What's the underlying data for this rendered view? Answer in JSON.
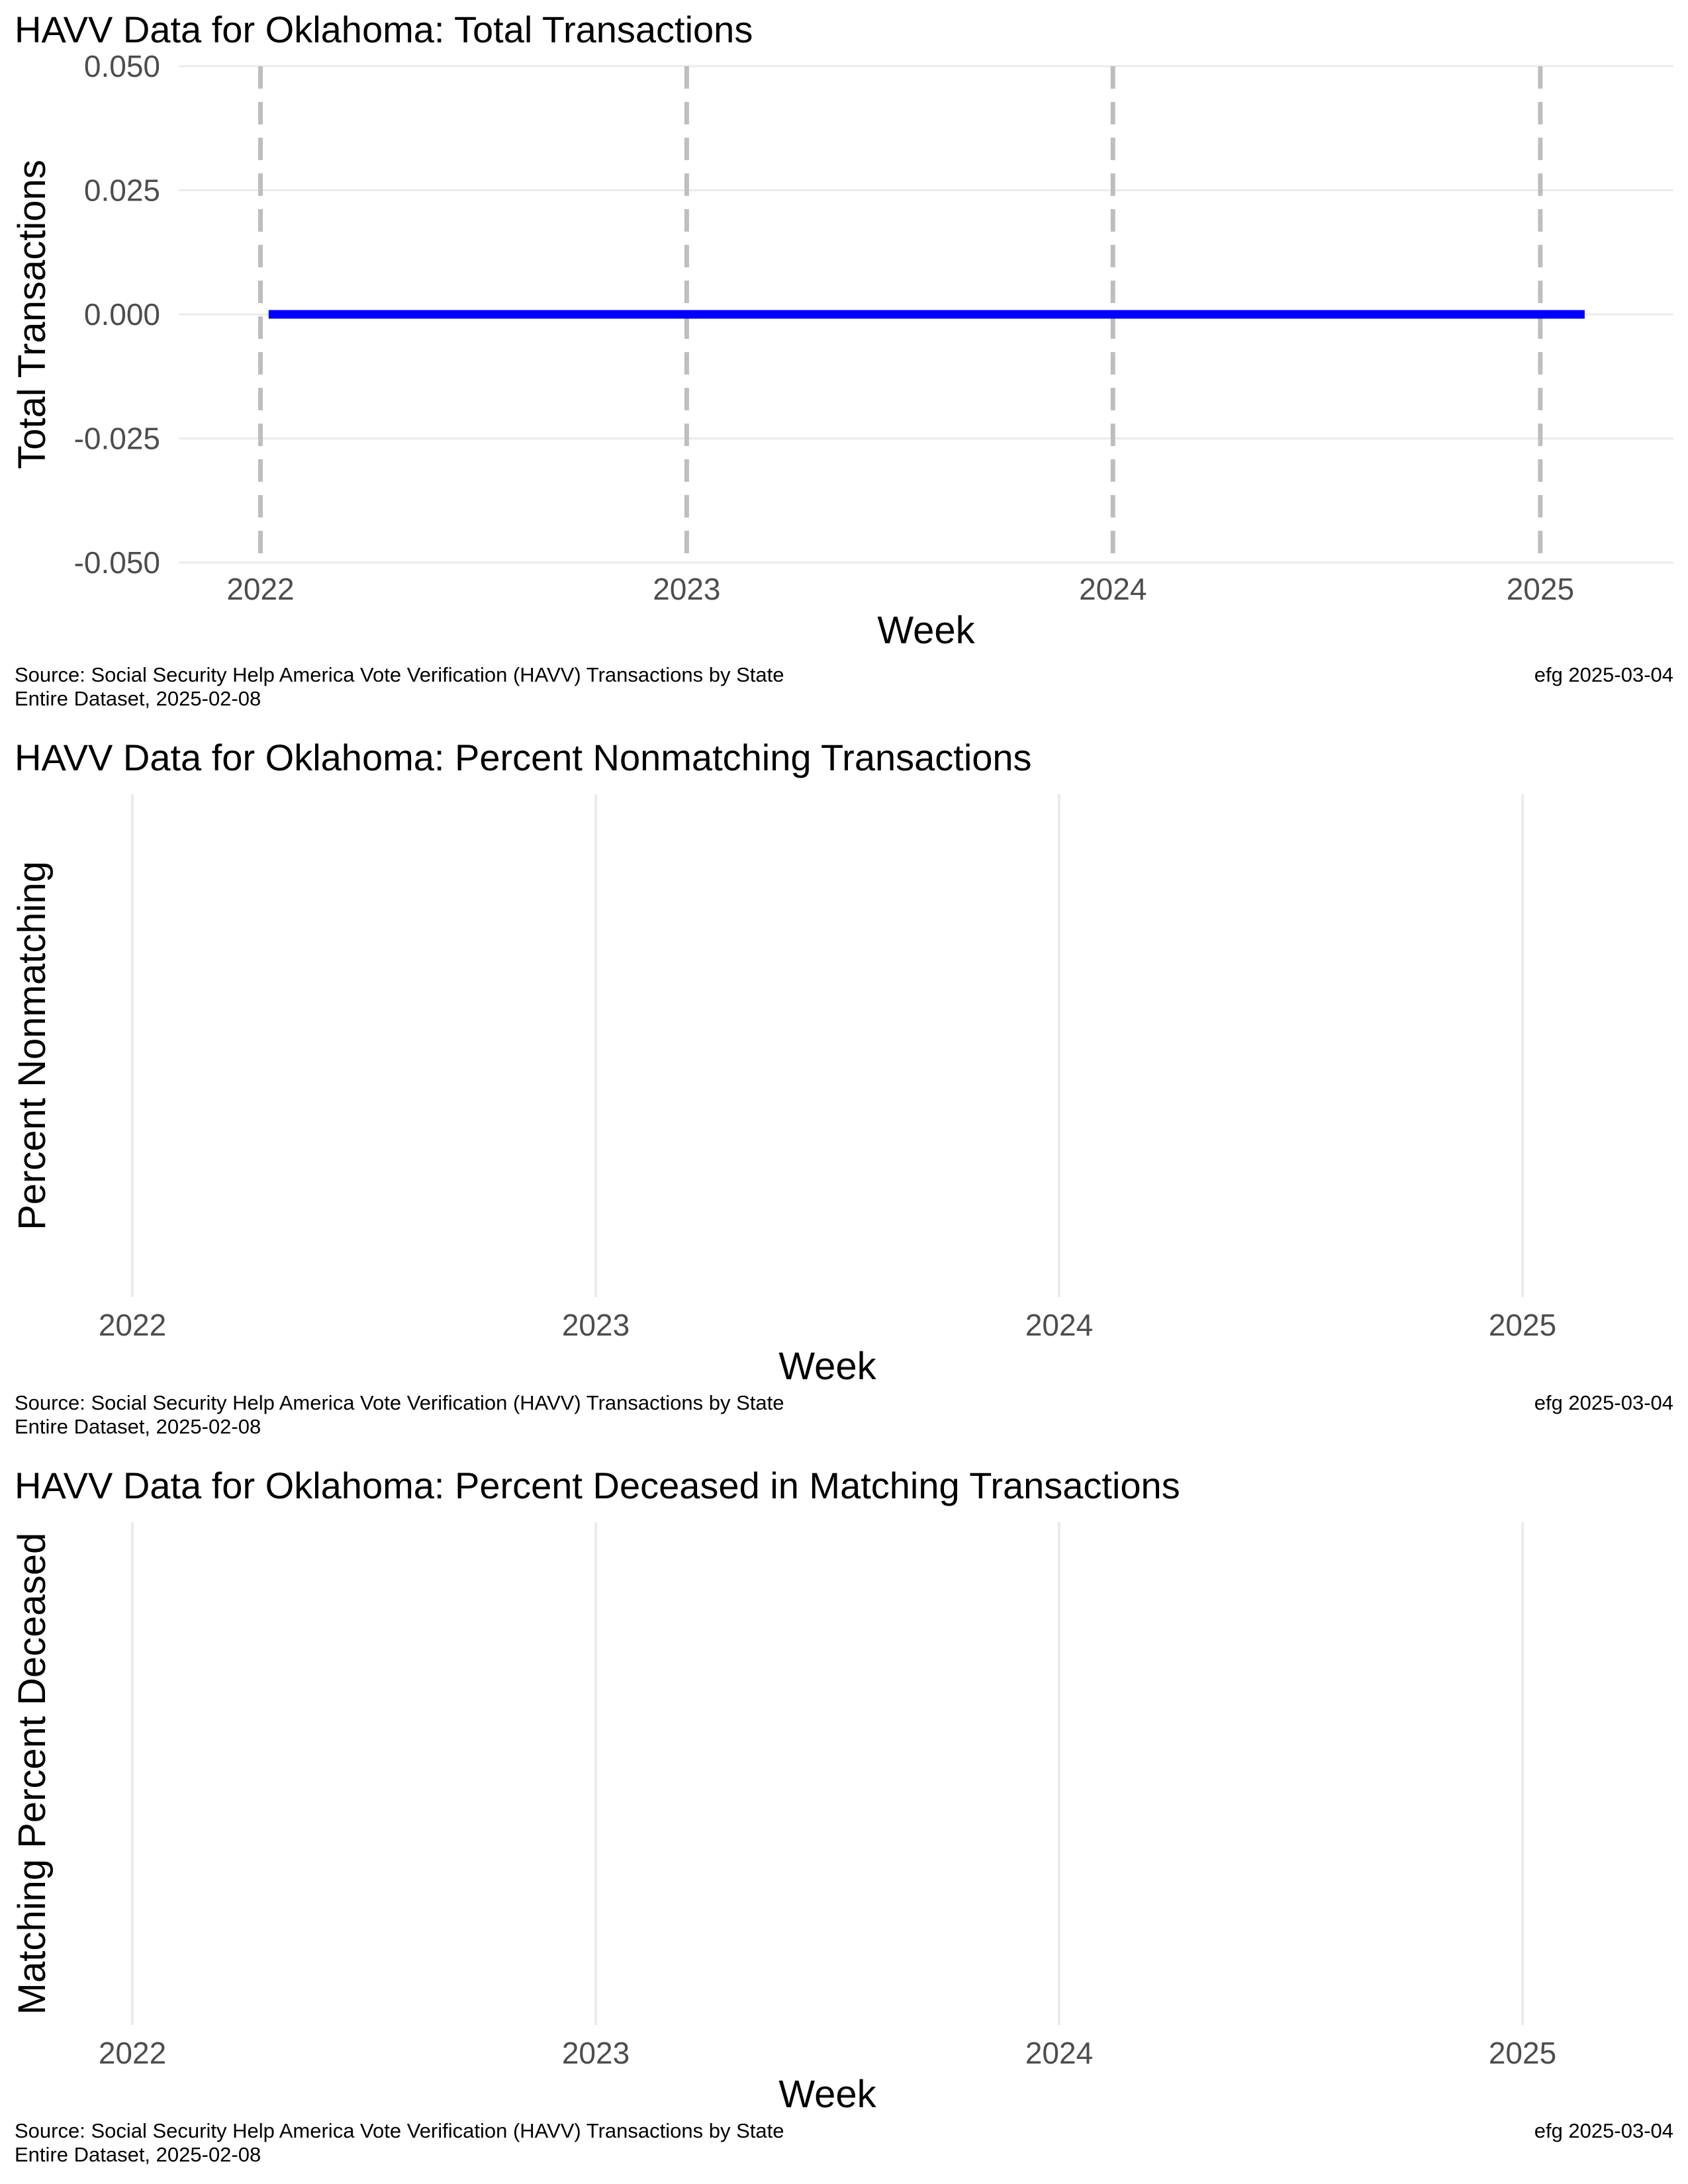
{
  "chart_data": [
    {
      "type": "line",
      "title": "HAVV Data for Oklahoma:  Total Transactions",
      "xlabel": "Week",
      "ylabel": "Total Transactions",
      "x_tick_labels": [
        "2022",
        "2023",
        "2024",
        "2025"
      ],
      "y_tick_labels": [
        "0.050",
        "0.025",
        "0.000",
        "-0.025",
        "-0.050"
      ],
      "ylim": [
        -0.05,
        0.05
      ],
      "y_ticks": [
        0.05,
        0.025,
        0,
        -0.025,
        -0.05
      ],
      "xlim": [
        "2021-10-23",
        "2025-04-25"
      ],
      "year_markers": [
        "2022-01-01",
        "2023-01-01",
        "2024-01-01",
        "2025-01-01"
      ],
      "year_marker_style": "dashed",
      "series": [
        {
          "color": "#0000ff",
          "points": [
            {
              "x": "2022-01-08",
              "y": 0
            },
            {
              "x": "2025-02-08",
              "y": 0
            }
          ]
        }
      ],
      "grid": true
    },
    {
      "type": "line",
      "title": "HAVV Data for Oklahoma:  Percent Nonmatching Transactions",
      "xlabel": "Week",
      "ylabel": "Percent Nonmatching",
      "x_tick_labels": [
        "2022",
        "2023",
        "2024",
        "2025"
      ],
      "series": [],
      "grid": true
    },
    {
      "type": "line",
      "title": "HAVV Data for Oklahoma:  Percent Deceased in Matching Transactions",
      "xlabel": "Week",
      "ylabel": "Matching Percent Deceased",
      "x_tick_labels": [
        "2022",
        "2023",
        "2024",
        "2025"
      ],
      "series": [],
      "grid": true
    }
  ],
  "caption": {
    "source_line1": "Source:  Social Security Help America Vote Verification (HAVV) Transactions by State",
    "source_line2": "Entire Dataset, 2025-02-08",
    "credit": "efg 2025-03-04"
  },
  "colors": {
    "series_line": "#0000ff",
    "gridline": "#ebebeb",
    "year_marker": "#bebebe",
    "tick_label": "#4d4d4d"
  }
}
